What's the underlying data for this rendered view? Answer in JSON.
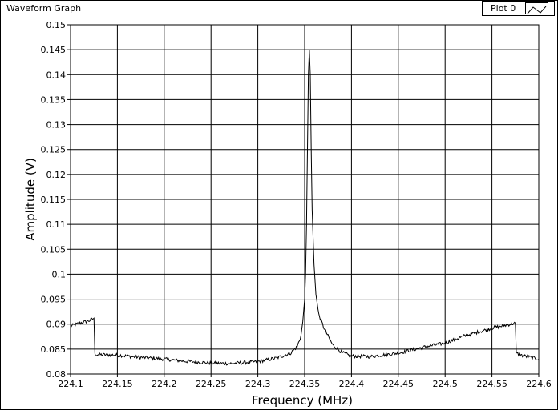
{
  "window": {
    "title": "Waveform Graph"
  },
  "legend": {
    "label": "Plot 0"
  },
  "colors": {
    "plot_background": "#ffffff",
    "grid": "#000000",
    "trace": "#000000"
  },
  "chart_data": {
    "type": "line",
    "xlabel": "Frequency (MHz)",
    "ylabel": "Amplitude (V)",
    "xlim": [
      224.1,
      224.6
    ],
    "ylim": [
      0.08,
      0.15
    ],
    "grid": true,
    "legend_position": "top-right",
    "x_ticks": [
      "224.1",
      "224.15",
      "224.2",
      "224.25",
      "224.3",
      "224.35",
      "224.4",
      "224.45",
      "224.5",
      "224.55",
      "224.6"
    ],
    "y_ticks": [
      "0.08",
      "0.085",
      "0.09",
      "0.095",
      "0.1",
      "0.105",
      "0.11",
      "0.115",
      "0.12",
      "0.125",
      "0.13",
      "0.135",
      "0.14",
      "0.145",
      "0.15"
    ],
    "series": [
      {
        "name": "Plot 0",
        "x": [
          224.1,
          224.11,
          224.12,
          224.125,
          224.126,
          224.13,
          224.15,
          224.17,
          224.2,
          224.22,
          224.25,
          224.27,
          224.3,
          224.32,
          224.335,
          224.342,
          224.346,
          224.348,
          224.35,
          224.351,
          224.352,
          224.353,
          224.354,
          224.355,
          224.356,
          224.357,
          224.358,
          224.36,
          224.362,
          224.365,
          224.37,
          224.375,
          224.38,
          224.39,
          224.4,
          224.42,
          224.45,
          224.48,
          224.5,
          224.52,
          224.55,
          224.575,
          224.576,
          224.58,
          224.6
        ],
        "y": [
          0.0896,
          0.0902,
          0.0907,
          0.0912,
          0.0839,
          0.0839,
          0.0838,
          0.0834,
          0.083,
          0.0826,
          0.0822,
          0.0821,
          0.0825,
          0.0832,
          0.0842,
          0.0855,
          0.0876,
          0.0905,
          0.095,
          0.1,
          0.11,
          0.125,
          0.14,
          0.145,
          0.14,
          0.125,
          0.113,
          0.102,
          0.096,
          0.092,
          0.0895,
          0.0876,
          0.0858,
          0.0843,
          0.0836,
          0.0835,
          0.0842,
          0.0855,
          0.0862,
          0.0876,
          0.0892,
          0.0902,
          0.0842,
          0.0838,
          0.083
        ]
      }
    ]
  }
}
